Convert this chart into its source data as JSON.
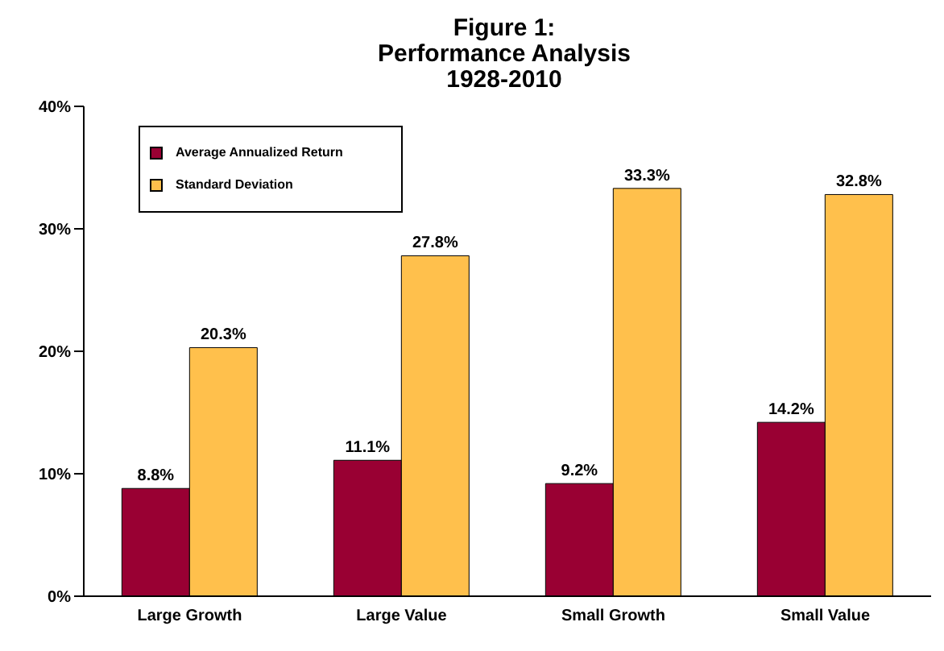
{
  "chart_data": {
    "type": "bar",
    "title": "Figure 1:\nPerformance Analysis\n1928-2010",
    "categories": [
      "Large Growth",
      "Large Value",
      "Small Growth",
      "Small Value"
    ],
    "series": [
      {
        "name": "Average Annualized Return",
        "color": "#990033",
        "values": [
          8.8,
          11.1,
          9.2,
          14.2
        ],
        "value_labels": [
          "8.8%",
          "11.1%",
          "9.2%",
          "14.2%"
        ]
      },
      {
        "name": "Standard Deviation",
        "color": "#ffc04c",
        "values": [
          20.3,
          27.8,
          33.3,
          32.8
        ],
        "value_labels": [
          "20.3%",
          "27.8%",
          "33.3%",
          "32.8%"
        ]
      }
    ],
    "ylim": [
      0,
      40
    ],
    "yticks": [
      {
        "value": 0,
        "label": "0%"
      },
      {
        "value": 10,
        "label": "10%"
      },
      {
        "value": 20,
        "label": "20%"
      },
      {
        "value": 30,
        "label": "30%"
      },
      {
        "value": 40,
        "label": "40%"
      }
    ],
    "grid": false,
    "legend": "top left"
  }
}
